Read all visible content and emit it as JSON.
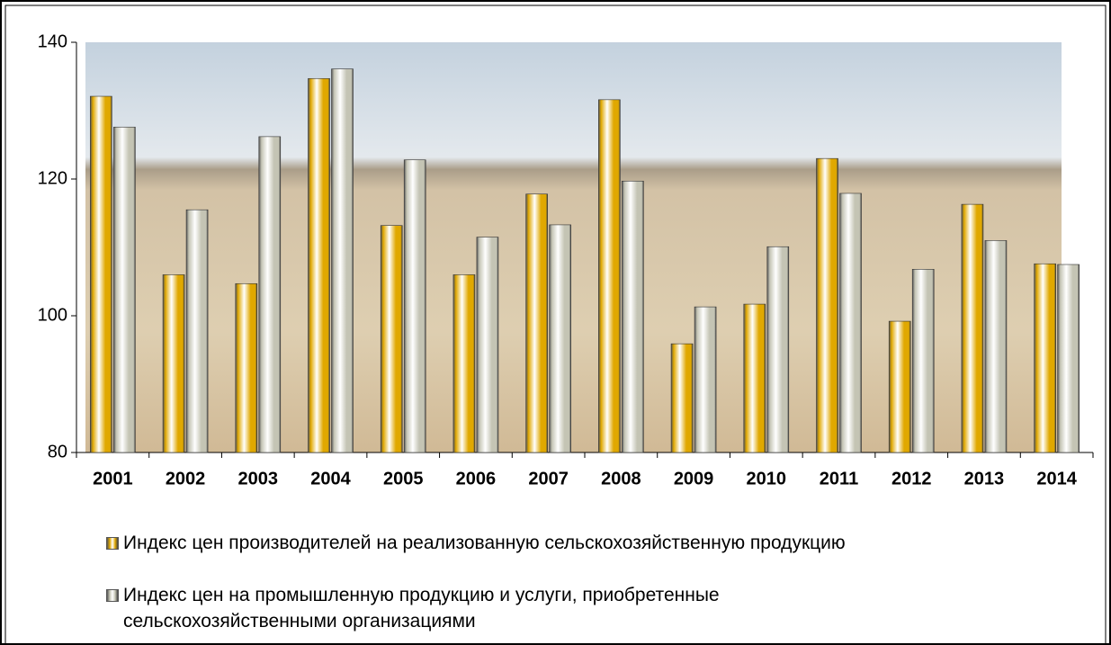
{
  "chart_data": {
    "type": "bar",
    "categories": [
      "2001",
      "2002",
      "2003",
      "2004",
      "2005",
      "2006",
      "2007",
      "2008",
      "2009",
      "2010",
      "2011",
      "2012",
      "2013",
      "2014"
    ],
    "series": [
      {
        "name": "Индекс цен производителей на реализованную сельскохозяйственную продукцию",
        "color": "#e0a800",
        "values": [
          132.1,
          106,
          104.7,
          134.7,
          113.2,
          106,
          117.8,
          131.6,
          95.9,
          101.7,
          123.0,
          99.2,
          116.3,
          107.6
        ]
      },
      {
        "name": "Индекс цен на промышленную продукцию и услуги, приобретенные сельскохозяйственными организациями",
        "color": "#c4c4b4",
        "values": [
          127.6,
          115.5,
          126.2,
          136.1,
          122.8,
          111.5,
          113.3,
          119.7,
          101.3,
          110.1,
          117.9,
          106.8,
          111,
          107.5
        ]
      }
    ],
    "ylim": [
      80,
      140
    ],
    "yticks": [
      80,
      100,
      120,
      140
    ]
  }
}
